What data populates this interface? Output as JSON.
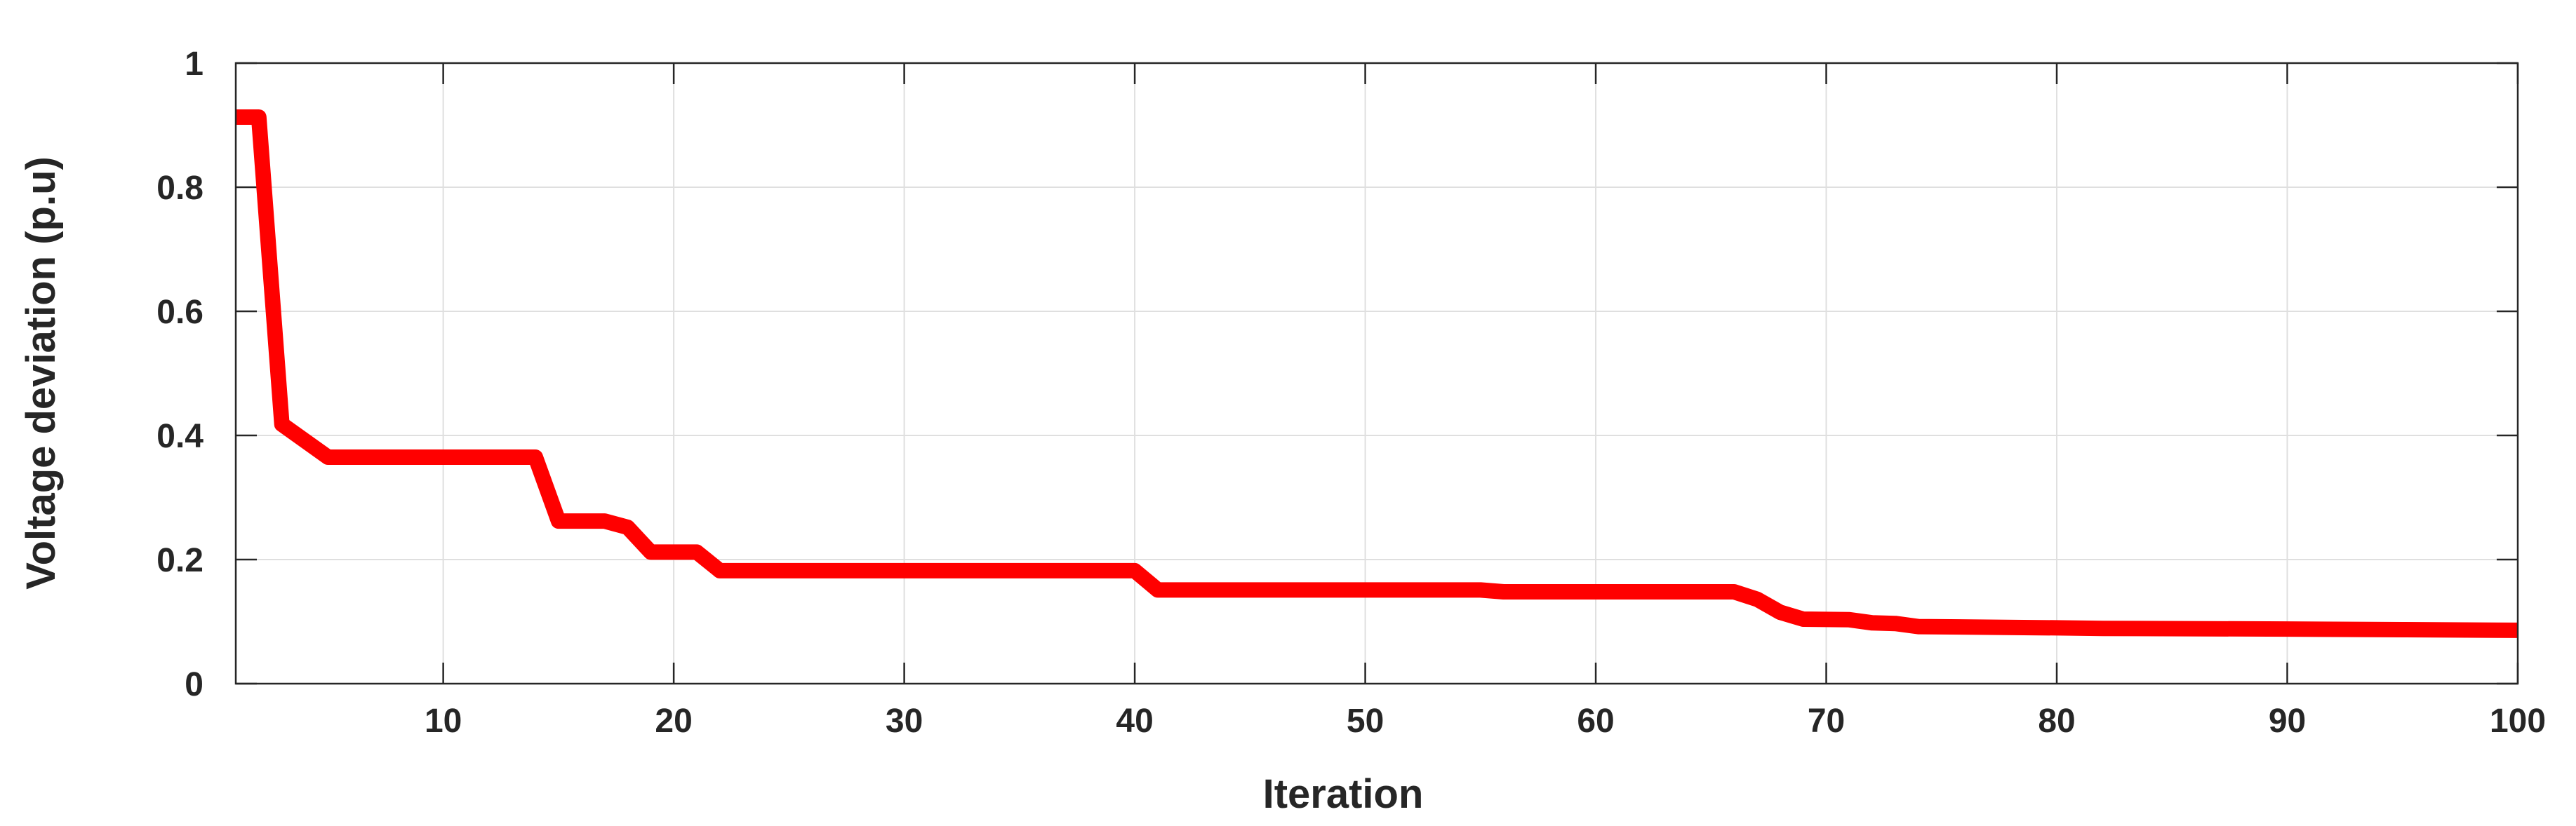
{
  "chart_data": {
    "type": "line",
    "title": "",
    "xlabel": "Iteration",
    "ylabel": "Voltage deviation (p.u)",
    "xlim": [
      1,
      100
    ],
    "ylim": [
      0,
      1
    ],
    "xticks": [
      10,
      20,
      30,
      40,
      50,
      60,
      70,
      80,
      90,
      100
    ],
    "xtick_labels": [
      "10",
      "20",
      "30",
      "40",
      "50",
      "60",
      "70",
      "80",
      "90",
      "100"
    ],
    "yticks": [
      0,
      0.2,
      0.4,
      0.6,
      0.8,
      1
    ],
    "ytick_labels": [
      "0",
      "0.2",
      "0.4",
      "0.6",
      "0.8",
      "1"
    ],
    "grid": true,
    "legend": "none",
    "series": [
      {
        "color": "#ff0000",
        "x": [
          1,
          2,
          3,
          5,
          6,
          10,
          14,
          15,
          17,
          18,
          19,
          21,
          22,
          30,
          40,
          41,
          50,
          55,
          56,
          60,
          66,
          67,
          68,
          69,
          71,
          72,
          73,
          74,
          80,
          82,
          90,
          95,
          100
        ],
        "y": [
          0.913,
          0.913,
          0.418,
          0.365,
          0.365,
          0.365,
          0.365,
          0.262,
          0.262,
          0.252,
          0.212,
          0.212,
          0.182,
          0.182,
          0.182,
          0.151,
          0.151,
          0.151,
          0.148,
          0.148,
          0.148,
          0.136,
          0.115,
          0.104,
          0.103,
          0.098,
          0.097,
          0.092,
          0.09,
          0.089,
          0.088,
          0.087,
          0.086
        ]
      }
    ]
  }
}
